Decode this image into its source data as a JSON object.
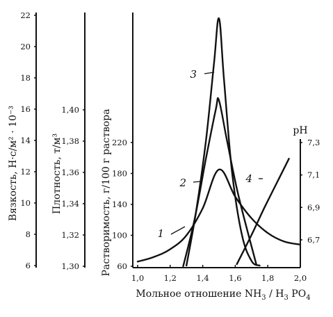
{
  "chart_data": {
    "type": "line",
    "x": {
      "label_main": "Мольное отношение NH",
      "label_sub1": "3",
      "label_mid": " / H",
      "label_sub2": "3",
      "label_end": " PO",
      "label_sub3": "4",
      "range": [
        1.0,
        2.0
      ],
      "ticks": [
        "1,0",
        "1,2",
        "1,4",
        "1,6",
        "1,8",
        "2,0"
      ]
    },
    "y_axes": [
      {
        "id": "viscosity",
        "label": "Вязкость, Н·с/м² · 10⁻³",
        "range": [
          6,
          22
        ],
        "ticks": [
          "6",
          "8",
          "10",
          "12",
          "14",
          "16",
          "18",
          "20",
          "22"
        ]
      },
      {
        "id": "density",
        "label": "Плотность, т/м³",
        "range": [
          1.3,
          1.4
        ],
        "ticks": [
          "1,30",
          "1,32",
          "1,34",
          "1,36",
          "1,38",
          "1,40"
        ]
      },
      {
        "id": "solubility",
        "label": "Растворимость, г/100 г раствора",
        "range": [
          60,
          220
        ],
        "ticks": [
          "60",
          "100",
          "140",
          "180",
          "220"
        ]
      },
      {
        "id": "ph",
        "label": "pH",
        "range": [
          6.7,
          7.3
        ],
        "ticks": [
          "6,7",
          "6,9",
          "7,1",
          "7,3"
        ]
      }
    ],
    "series": [
      {
        "label": "1",
        "axis": "solubility",
        "points": [
          [
            1.0,
            66
          ],
          [
            1.1,
            72
          ],
          [
            1.2,
            82
          ],
          [
            1.3,
            100
          ],
          [
            1.4,
            135
          ],
          [
            1.5,
            185
          ],
          [
            1.6,
            150
          ],
          [
            1.7,
            122
          ],
          [
            1.8,
            103
          ],
          [
            1.9,
            92
          ],
          [
            2.0,
            88
          ]
        ]
      },
      {
        "label": "2",
        "axis": "density",
        "points": [
          [
            1.28,
            1.3
          ],
          [
            1.35,
            1.33
          ],
          [
            1.42,
            1.369
          ],
          [
            1.48,
            1.4
          ],
          [
            1.5,
            1.406
          ],
          [
            1.55,
            1.38
          ],
          [
            1.62,
            1.345
          ],
          [
            1.73,
            1.301
          ]
        ]
      },
      {
        "label": "3",
        "axis": "viscosity",
        "points": [
          [
            1.3,
            6.0
          ],
          [
            1.36,
            9.5
          ],
          [
            1.42,
            14.0
          ],
          [
            1.47,
            19.0
          ],
          [
            1.5,
            21.8
          ],
          [
            1.53,
            18.0
          ],
          [
            1.58,
            12.0
          ],
          [
            1.64,
            8.0
          ],
          [
            1.7,
            6.3
          ],
          [
            1.75,
            6.0
          ]
        ]
      },
      {
        "label": "4",
        "axis": "ph",
        "points": [
          [
            1.61,
            6.55
          ],
          [
            1.7,
            6.73
          ],
          [
            1.78,
            6.9
          ],
          [
            1.86,
            7.06
          ],
          [
            1.93,
            7.2
          ]
        ]
      }
    ]
  }
}
